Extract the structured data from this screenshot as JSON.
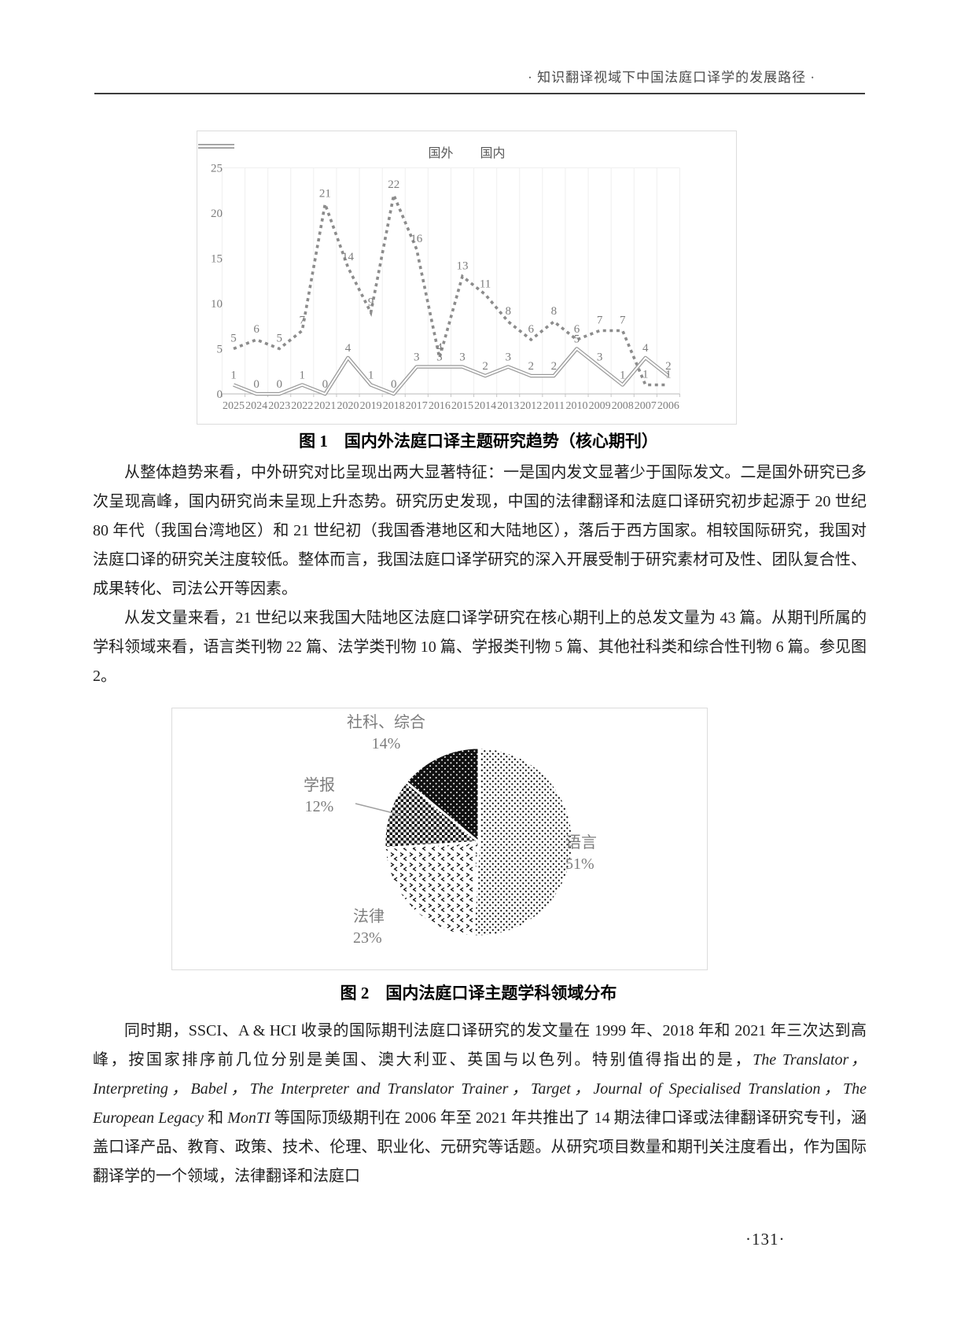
{
  "header": {
    "running_title": "· 知识翻译视域下中国法庭口译学的发展路径 ·"
  },
  "page_number": "·131·",
  "figure1": {
    "caption": "图 1　国内外法庭口译主题研究趋势（核心期刊）"
  },
  "figure2": {
    "caption": "图 2　国内法庭口译主题学科领域分布"
  },
  "paragraphs": {
    "p1": "从整体趋势来看，中外研究对比呈现出两大显著特征：一是国内发文显著少于国际发文。二是国外研究已多次呈现高峰，国内研究尚未呈现上升态势。研究历史发现，中国的法律翻译和法庭口译研究初步起源于 20 世纪 80 年代（我国台湾地区）和 21 世纪初（我国香港地区和大陆地区），落后于西方国家。相较国际研究，我国对法庭口译的研究关注度较低。整体而言，我国法庭口译学研究的深入开展受制于研究素材可及性、团队复合性、成果转化、司法公开等因素。",
    "p2": "从发文量来看，21 世纪以来我国大陆地区法庭口译学研究在核心期刊上的总发文量为 43 篇。从期刊所属的学科领域来看，语言类刊物 22 篇、法学类刊物 10 篇、学报类刊物 5 篇、其他社科类和综合性刊物 6 篇。参见图 2。",
    "p3_rich": [
      {
        "t": "同时期，SSCI、A & HCI 收录的国际期刊法庭口译研究的发文量在 1999 年、2018 年和 2021 年三次达到高峰，按国家排序前几位分别是美国、澳大利亚、英国与以色列。特别值得指出的是，",
        "i": false
      },
      {
        "t": "The Translator，Interpreting，Babel，The Interpreter and Translator Trainer，Target，Journal of Specialised Translation，The European Legacy",
        "i": true
      },
      {
        "t": " 和 ",
        "i": false
      },
      {
        "t": "MonTI",
        "i": true
      },
      {
        "t": " 等国际顶级期刊在 2006 年至 2021 年共推出了 14 期法律口译或法律翻译研究专刊，涵盖口译产品、教育、政策、技术、伦理、职业化、元研究等话题。从研究项目数量和期刊关注度看出，作为国际翻译学的一个领域，法律翻译和法庭口",
        "i": false
      }
    ]
  },
  "chart_data": [
    {
      "type": "line",
      "title": "国内外法庭口译主题研究趋势（核心期刊）",
      "categories": [
        "2025",
        "2024",
        "2023",
        "2022",
        "2021",
        "2020",
        "2019",
        "2018",
        "2017",
        "2016",
        "2015",
        "2014",
        "2013",
        "2012",
        "2011",
        "2010",
        "2009",
        "2008",
        "2007",
        "2006"
      ],
      "series": [
        {
          "name": "国外",
          "style": "dotted",
          "values": [
            5,
            6,
            5,
            7,
            21,
            14,
            9,
            22,
            16,
            4,
            13,
            11,
            8,
            6,
            8,
            6,
            7,
            7,
            1,
            1
          ]
        },
        {
          "name": "国内",
          "style": "double-line",
          "values": [
            1,
            0,
            0,
            1,
            0,
            4,
            1,
            0,
            3,
            3,
            3,
            2,
            3,
            2,
            2,
            5,
            3,
            1,
            4,
            2
          ]
        }
      ],
      "ylim": [
        0,
        25
      ],
      "yticks": [
        0,
        5,
        10,
        15,
        20,
        25
      ],
      "grid": "vertical",
      "legend_position": "top-center",
      "data_labels": true,
      "line_color": "#8c8c8c"
    },
    {
      "type": "pie",
      "title": "国内法庭口译主题学科领域分布",
      "start_angle": "top",
      "direction": "clockwise",
      "slices": [
        {
          "label": "语言",
          "pct": 51,
          "pct_label": "51%",
          "pattern": "dots-light"
        },
        {
          "label": "法律",
          "pct": 23,
          "pct_label": "23%",
          "pattern": "chevron"
        },
        {
          "label": "学报",
          "pct": 12,
          "pct_label": "12%",
          "pattern": "checker"
        },
        {
          "label": "社科、综合",
          "pct": 14,
          "pct_label": "14%",
          "pattern": "dots-dark"
        }
      ]
    }
  ],
  "colors": {
    "line_gray": "#8c8c8c",
    "label_gray": "#7d7d7d",
    "grid_gray": "#efefef",
    "text": "#1f1f1f"
  }
}
